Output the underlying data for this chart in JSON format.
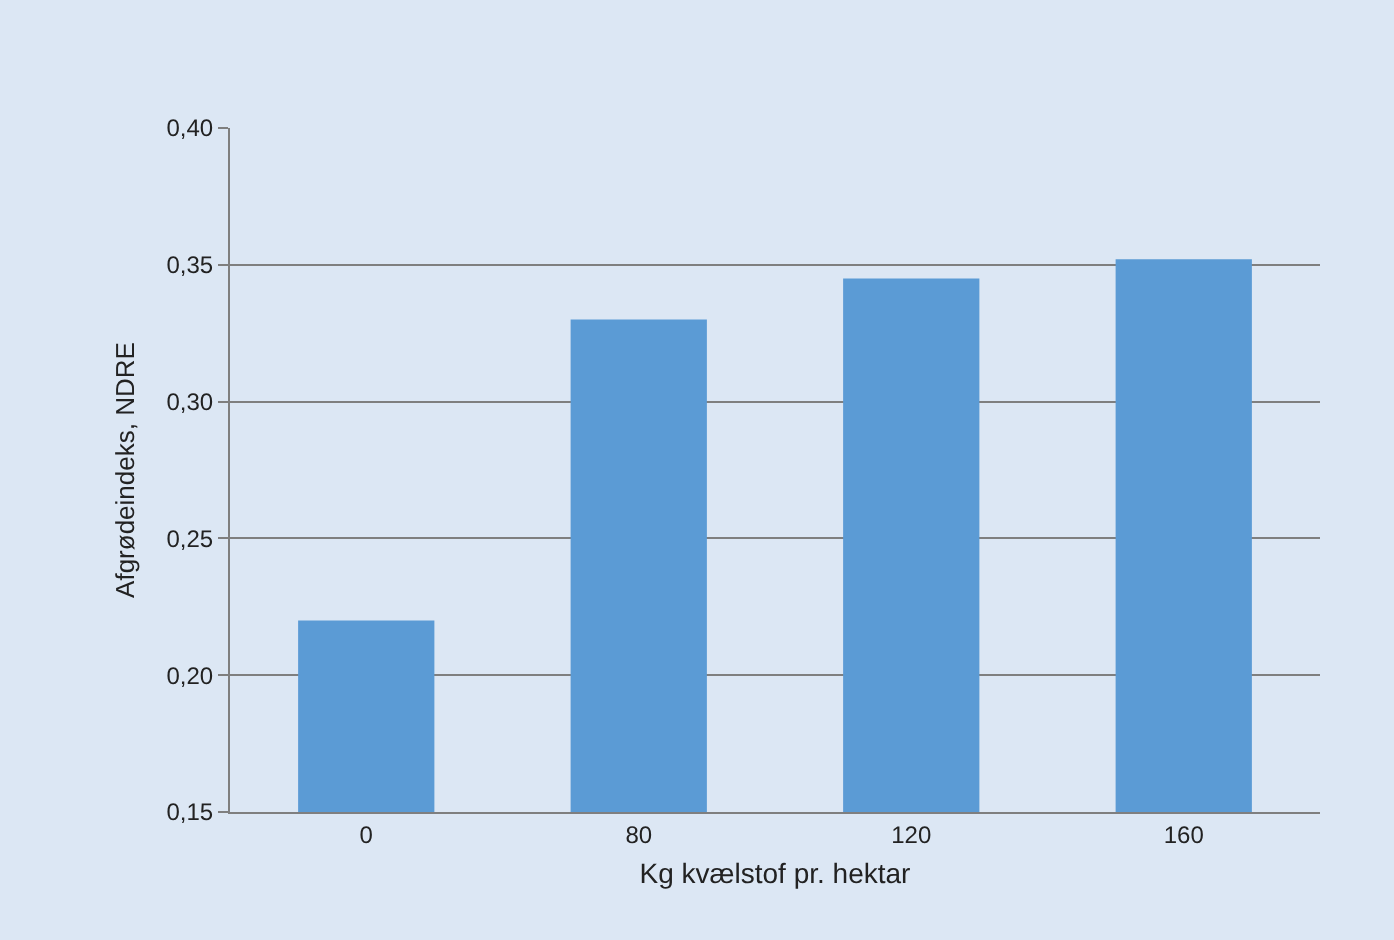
{
  "chart_data": {
    "type": "bar",
    "xlabel": "Kg kvælstof pr. hektar",
    "ylabel": "Afgrødeindeks, NDRE",
    "categories": [
      "0",
      "80",
      "120",
      "160"
    ],
    "values": [
      0.22,
      0.33,
      0.345,
      0.352
    ],
    "color": "#5b9bd5",
    "ylim": [
      0.15,
      0.4
    ],
    "yticks": [
      {
        "value": 0.15,
        "label": "0,15"
      },
      {
        "value": 0.2,
        "label": "0,20"
      },
      {
        "value": 0.25,
        "label": "0,25"
      },
      {
        "value": 0.3,
        "label": "0,30"
      },
      {
        "value": 0.35,
        "label": "0,35"
      },
      {
        "value": 0.4,
        "label": "0,40"
      }
    ],
    "grid": "y",
    "legend": false
  }
}
